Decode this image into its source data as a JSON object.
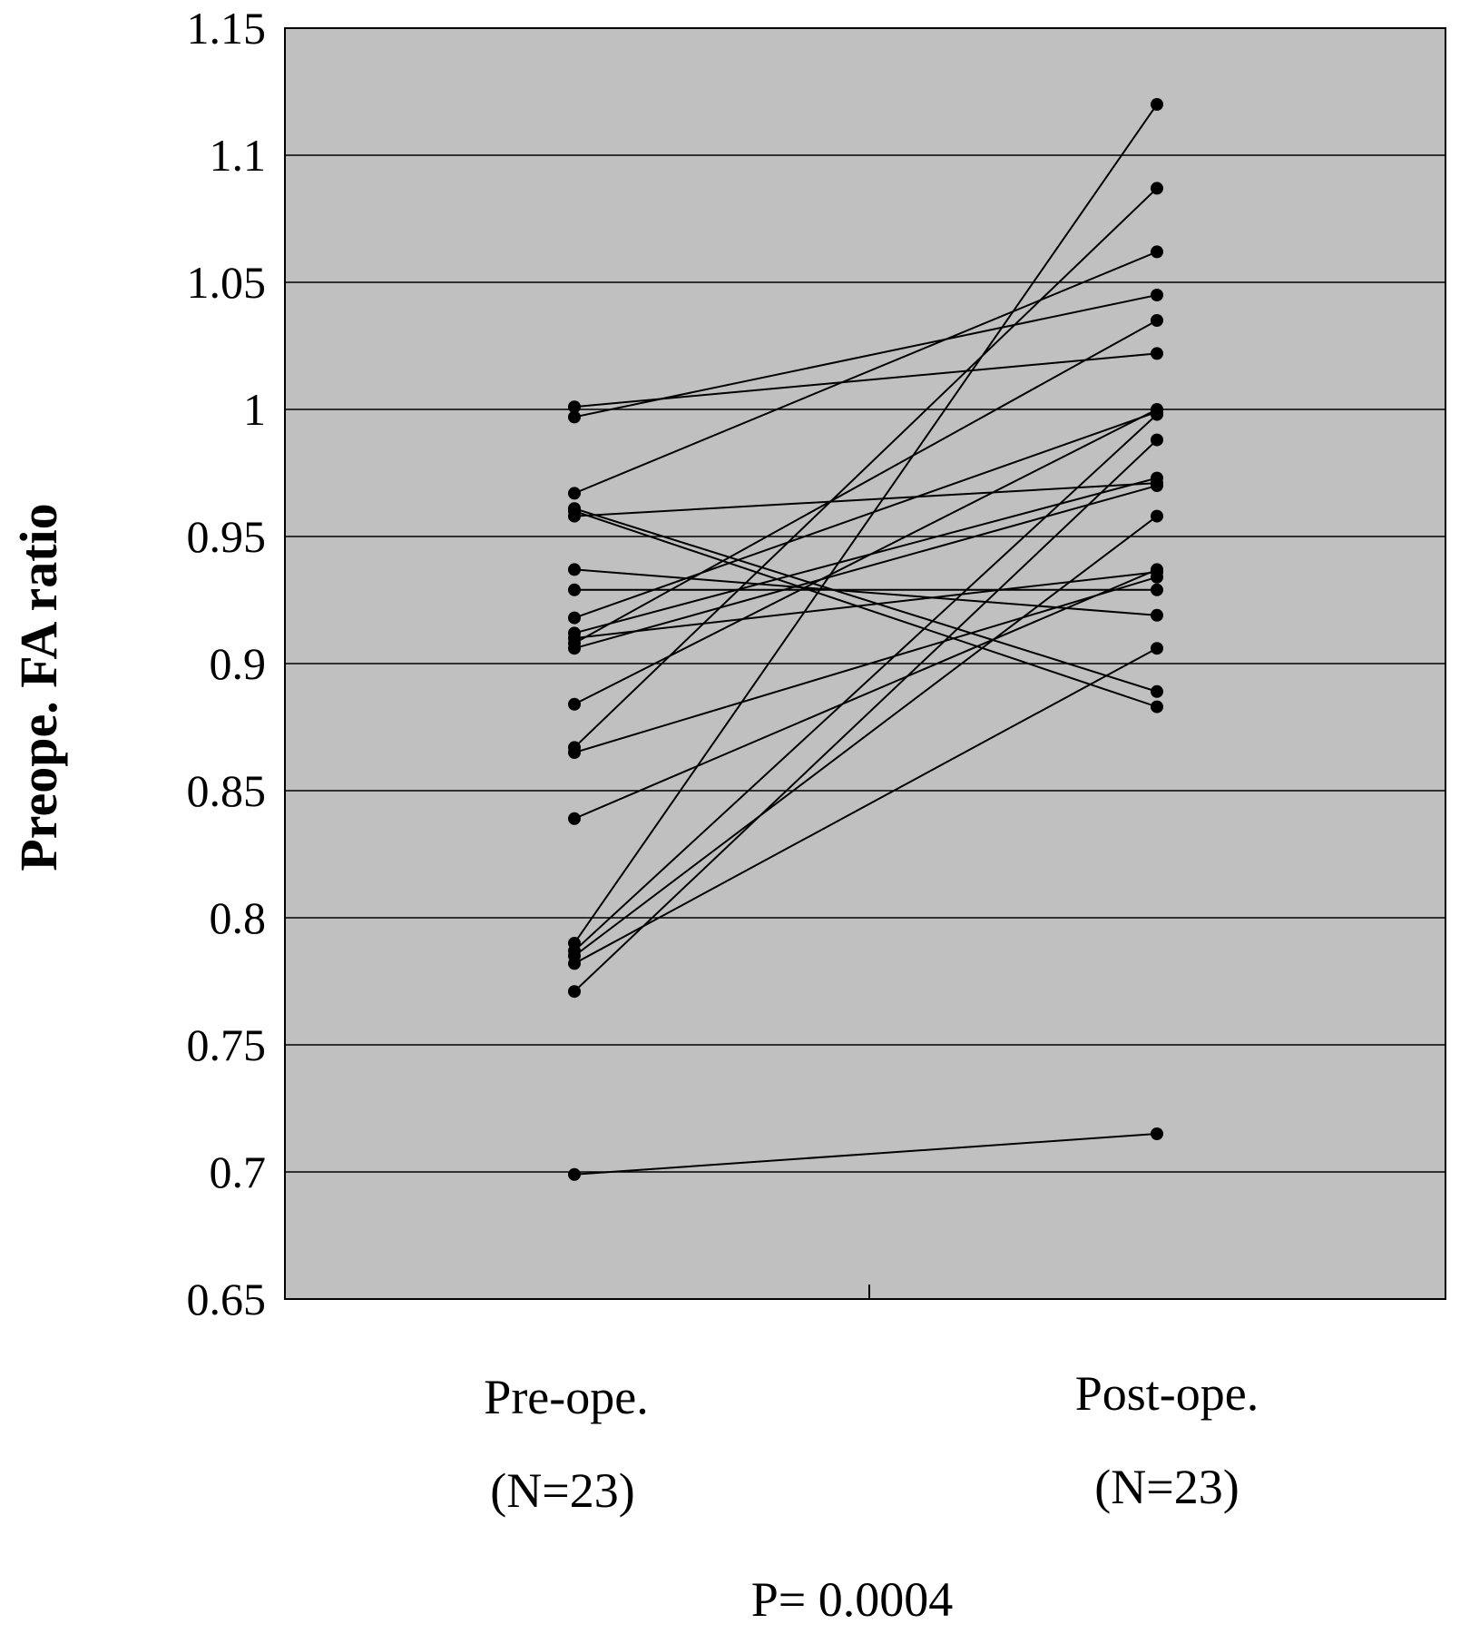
{
  "chart_data": {
    "type": "line",
    "ylabel": "Preope. FA ratio",
    "xlabel": "",
    "ylim": [
      0.65,
      1.15
    ],
    "yticks": [
      "0.65",
      "0.7",
      "0.75",
      "0.8",
      "0.85",
      "0.9",
      "0.95",
      "1",
      "1.05",
      "1.1",
      "1.15"
    ],
    "grid": true,
    "background": "#c0c0c0",
    "line_color": "#000000",
    "categories": [
      {
        "line1": "Pre-ope.",
        "line2": "(N=23)"
      },
      {
        "line1": "Post-ope.",
        "line2": "(N=23)"
      }
    ],
    "annotation": "P= 0.0004",
    "pairs": [
      {
        "pre": 1.001,
        "post": 1.022
      },
      {
        "pre": 0.997,
        "post": 1.045
      },
      {
        "pre": 0.967,
        "post": 1.062
      },
      {
        "pre": 0.961,
        "post": 0.889
      },
      {
        "pre": 0.958,
        "post": 0.971
      },
      {
        "pre": 0.96,
        "post": 0.883
      },
      {
        "pre": 0.937,
        "post": 0.919
      },
      {
        "pre": 0.929,
        "post": 0.929
      },
      {
        "pre": 0.918,
        "post": 0.999
      },
      {
        "pre": 0.912,
        "post": 0.973
      },
      {
        "pre": 0.91,
        "post": 0.936
      },
      {
        "pre": 0.908,
        "post": 1.035
      },
      {
        "pre": 0.906,
        "post": 0.97
      },
      {
        "pre": 0.884,
        "post": 1.0
      },
      {
        "pre": 0.867,
        "post": 1.087
      },
      {
        "pre": 0.865,
        "post": 0.934
      },
      {
        "pre": 0.839,
        "post": 0.937
      },
      {
        "pre": 0.79,
        "post": 1.12
      },
      {
        "pre": 0.787,
        "post": 0.998
      },
      {
        "pre": 0.785,
        "post": 0.958
      },
      {
        "pre": 0.782,
        "post": 0.906
      },
      {
        "pre": 0.771,
        "post": 0.988
      },
      {
        "pre": 0.699,
        "post": 0.715
      }
    ]
  }
}
